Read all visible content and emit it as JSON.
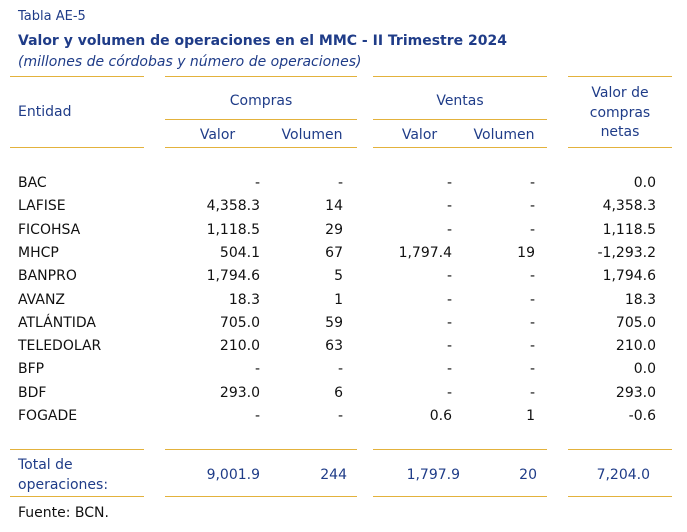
{
  "table_label": "Tabla AE-5",
  "title": "Valor y volumen de operaciones en el MMC - II Trimestre 2024",
  "subtitle": "(millones de córdobas y número de operaciones)",
  "headers": {
    "entidad": "Entidad",
    "compras": "Compras",
    "ventas": "Ventas",
    "valor": "Valor",
    "volumen": "Volumen",
    "netas_line1": "Valor de",
    "netas_line2": "compras",
    "netas_line3": "netas"
  },
  "rows": [
    {
      "entity": "BAC",
      "compras_valor": "-",
      "compras_volumen": "-",
      "ventas_valor": "-",
      "ventas_volumen": "-",
      "netas": "0.0"
    },
    {
      "entity": "LAFISE",
      "compras_valor": "4,358.3",
      "compras_volumen": "14",
      "ventas_valor": "-",
      "ventas_volumen": "-",
      "netas": "4,358.3"
    },
    {
      "entity": "FICOHSA",
      "compras_valor": "1,118.5",
      "compras_volumen": "29",
      "ventas_valor": "-",
      "ventas_volumen": "-",
      "netas": "1,118.5"
    },
    {
      "entity": "MHCP",
      "compras_valor": "504.1",
      "compras_volumen": "67",
      "ventas_valor": "1,797.4",
      "ventas_volumen": "19",
      "netas": "-1,293.2"
    },
    {
      "entity": "BANPRO",
      "compras_valor": "1,794.6",
      "compras_volumen": "5",
      "ventas_valor": "-",
      "ventas_volumen": "-",
      "netas": "1,794.6"
    },
    {
      "entity": "AVANZ",
      "compras_valor": "18.3",
      "compras_volumen": "1",
      "ventas_valor": "-",
      "ventas_volumen": "-",
      "netas": "18.3"
    },
    {
      "entity": "ATLÁNTIDA",
      "compras_valor": "705.0",
      "compras_volumen": "59",
      "ventas_valor": "-",
      "ventas_volumen": "-",
      "netas": "705.0"
    },
    {
      "entity": "TELEDOLAR",
      "compras_valor": "210.0",
      "compras_volumen": "63",
      "ventas_valor": "-",
      "ventas_volumen": "-",
      "netas": "210.0"
    },
    {
      "entity": "BFP",
      "compras_valor": "-",
      "compras_volumen": "-",
      "ventas_valor": "-",
      "ventas_volumen": "-",
      "netas": "0.0"
    },
    {
      "entity": "BDF",
      "compras_valor": "293.0",
      "compras_volumen": "6",
      "ventas_valor": "-",
      "ventas_volumen": "-",
      "netas": "293.0"
    },
    {
      "entity": "FOGADE",
      "compras_valor": "-",
      "compras_volumen": "-",
      "ventas_valor": "0.6",
      "ventas_volumen": "1",
      "netas": "-0.6"
    }
  ],
  "totals": {
    "label_line1": "Total de",
    "label_line2": "operaciones:",
    "compras_valor": "9,001.9",
    "compras_volumen": "244",
    "ventas_valor": "1,797.9",
    "ventas_volumen": "20",
    "netas": "7,204.0"
  },
  "source": "Fuente: BCN.",
  "colors": {
    "heading": "#1f3c88",
    "rule": "#e3b23c",
    "body_text": "#111111"
  }
}
